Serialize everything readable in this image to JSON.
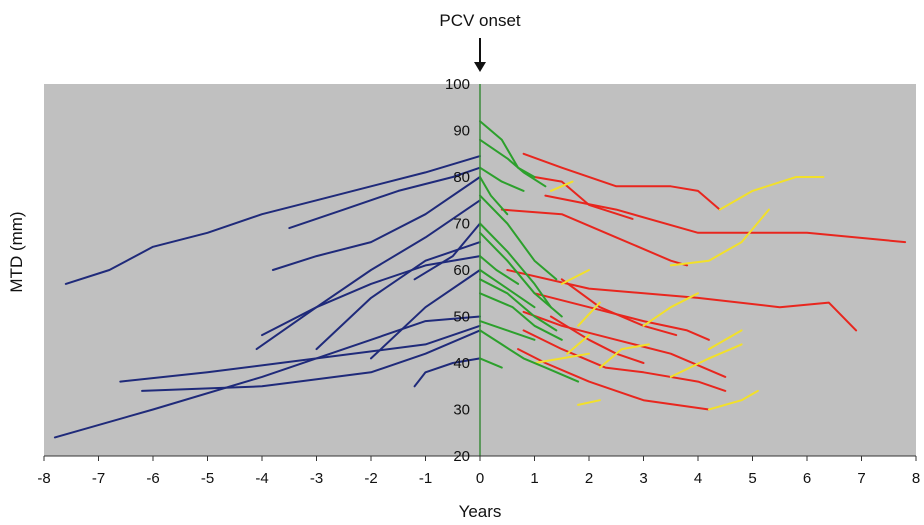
{
  "chart_data": {
    "type": "line",
    "title": "",
    "annotation": "PCV onset",
    "xlabel": "Years",
    "ylabel": "MTD (mm)",
    "xlim": [
      -8,
      8
    ],
    "ylim": [
      20,
      100
    ],
    "xticks": [
      "-8",
      "-7",
      "-6",
      "-5",
      "-4",
      "-3",
      "-2",
      "-1",
      "0",
      "1",
      "2",
      "3",
      "4",
      "5",
      "6",
      "7",
      "8"
    ],
    "yticks": [
      "20",
      "30",
      "40",
      "50",
      "60",
      "70",
      "80",
      "90",
      "100"
    ],
    "grid": false,
    "background_color": "#c0c0c0",
    "vertical_line_x": 0,
    "colors": {
      "pre_pcv": "#1f2a7a",
      "early_post": "#2ca02c",
      "late_post": "#e8261e",
      "recurrence": "#f2e02a",
      "onset_line": "#3a8a3a"
    },
    "series": [
      {
        "group": "pre_pcv",
        "points": [
          [
            -7.6,
            57
          ],
          [
            -6.8,
            60
          ],
          [
            -6.0,
            65
          ],
          [
            -5.0,
            68
          ],
          [
            -4.0,
            72
          ],
          [
            -3.0,
            75
          ],
          [
            -2.0,
            78
          ],
          [
            -1.0,
            81
          ],
          [
            0,
            84.5
          ]
        ]
      },
      {
        "group": "pre_pcv",
        "points": [
          [
            -3.5,
            69
          ],
          [
            -2.5,
            73
          ],
          [
            -1.5,
            77
          ],
          [
            -0.5,
            80
          ],
          [
            0,
            82
          ]
        ]
      },
      {
        "group": "pre_pcv",
        "points": [
          [
            -3.8,
            60
          ],
          [
            -3.0,
            63
          ],
          [
            -2.0,
            66
          ],
          [
            -1.0,
            72
          ],
          [
            0,
            80
          ]
        ]
      },
      {
        "group": "pre_pcv",
        "points": [
          [
            -4.1,
            43
          ],
          [
            -3.0,
            52
          ],
          [
            -2.0,
            60
          ],
          [
            -1.0,
            67
          ],
          [
            0,
            75
          ]
        ]
      },
      {
        "group": "pre_pcv",
        "points": [
          [
            -4.0,
            46
          ],
          [
            -3.0,
            52
          ],
          [
            -2.0,
            57
          ],
          [
            -1.0,
            61
          ],
          [
            0,
            63
          ]
        ]
      },
      {
        "group": "pre_pcv",
        "points": [
          [
            -3.0,
            43
          ],
          [
            -2.0,
            54
          ],
          [
            -1.0,
            62
          ],
          [
            0,
            66
          ]
        ]
      },
      {
        "group": "pre_pcv",
        "points": [
          [
            -2.0,
            41
          ],
          [
            -1.0,
            52
          ],
          [
            0,
            60
          ]
        ]
      },
      {
        "group": "pre_pcv",
        "points": [
          [
            -1.2,
            58
          ],
          [
            -0.5,
            63
          ],
          [
            0,
            70
          ]
        ]
      },
      {
        "group": "pre_pcv",
        "points": [
          [
            -6.6,
            36
          ],
          [
            -5.0,
            38
          ],
          [
            -3.0,
            41
          ],
          [
            -1.0,
            44
          ],
          [
            0,
            48
          ]
        ]
      },
      {
        "group": "pre_pcv",
        "points": [
          [
            -6.2,
            34
          ],
          [
            -4.0,
            35
          ],
          [
            -2.0,
            38
          ],
          [
            -1.0,
            42
          ],
          [
            0,
            47
          ]
        ]
      },
      {
        "group": "pre_pcv",
        "points": [
          [
            -7.8,
            24
          ],
          [
            -6.0,
            30
          ],
          [
            -4.0,
            37
          ],
          [
            -2.0,
            45
          ],
          [
            -1.0,
            49
          ],
          [
            0,
            50
          ]
        ]
      },
      {
        "group": "pre_pcv",
        "points": [
          [
            -1.2,
            35
          ],
          [
            -1.0,
            38
          ],
          [
            -0.5,
            40
          ],
          [
            0,
            41
          ]
        ]
      },
      {
        "group": "early_post",
        "points": [
          [
            0,
            92
          ],
          [
            0.4,
            88
          ],
          [
            0.7,
            82
          ],
          [
            1.0,
            80
          ]
        ]
      },
      {
        "group": "early_post",
        "points": [
          [
            0,
            88
          ],
          [
            0.5,
            84
          ],
          [
            0.8,
            81
          ],
          [
            1.2,
            78
          ]
        ]
      },
      {
        "group": "early_post",
        "points": [
          [
            0,
            82
          ],
          [
            0.4,
            79
          ],
          [
            0.8,
            77
          ]
        ]
      },
      {
        "group": "early_post",
        "points": [
          [
            0,
            80
          ],
          [
            0.2,
            76
          ],
          [
            0.5,
            72
          ]
        ]
      },
      {
        "group": "early_post",
        "points": [
          [
            0,
            76
          ],
          [
            0.5,
            70
          ],
          [
            1.0,
            62
          ],
          [
            1.4,
            58
          ]
        ]
      },
      {
        "group": "early_post",
        "points": [
          [
            0,
            70
          ],
          [
            0.5,
            64
          ],
          [
            1.0,
            57
          ],
          [
            1.3,
            52
          ]
        ]
      },
      {
        "group": "early_post",
        "points": [
          [
            0,
            68
          ],
          [
            0.5,
            62
          ],
          [
            1.0,
            55
          ],
          [
            1.5,
            50
          ]
        ]
      },
      {
        "group": "early_post",
        "points": [
          [
            0,
            63
          ],
          [
            0.3,
            60
          ],
          [
            0.7,
            57
          ]
        ]
      },
      {
        "group": "early_post",
        "points": [
          [
            0,
            60
          ],
          [
            0.5,
            56
          ],
          [
            1.0,
            52
          ]
        ]
      },
      {
        "group": "early_post",
        "points": [
          [
            0,
            58
          ],
          [
            0.5,
            55
          ],
          [
            1.0,
            50
          ],
          [
            1.4,
            47
          ]
        ]
      },
      {
        "group": "early_post",
        "points": [
          [
            0,
            55
          ],
          [
            0.6,
            52
          ],
          [
            1.0,
            48
          ],
          [
            1.5,
            45
          ]
        ]
      },
      {
        "group": "early_post",
        "points": [
          [
            0,
            49
          ],
          [
            0.5,
            47
          ],
          [
            1.0,
            45
          ]
        ]
      },
      {
        "group": "early_post",
        "points": [
          [
            0,
            47
          ],
          [
            0.4,
            44
          ],
          [
            0.8,
            41
          ],
          [
            1.2,
            39
          ],
          [
            1.8,
            36
          ]
        ]
      },
      {
        "group": "early_post",
        "points": [
          [
            0,
            41
          ],
          [
            0.4,
            39
          ]
        ]
      },
      {
        "group": "late_post",
        "points": [
          [
            0.8,
            85
          ],
          [
            1.5,
            82
          ],
          [
            2.5,
            78
          ],
          [
            3.5,
            78
          ],
          [
            4.0,
            77
          ],
          [
            4.4,
            73
          ]
        ]
      },
      {
        "group": "late_post",
        "points": [
          [
            1.0,
            80
          ],
          [
            1.5,
            79
          ],
          [
            2.0,
            74
          ],
          [
            2.8,
            71
          ]
        ]
      },
      {
        "group": "late_post",
        "points": [
          [
            0.4,
            73
          ],
          [
            1.5,
            72
          ],
          [
            2.5,
            67
          ],
          [
            3.5,
            62
          ],
          [
            3.8,
            61
          ]
        ]
      },
      {
        "group": "late_post",
        "points": [
          [
            1.2,
            76
          ],
          [
            2.5,
            73
          ],
          [
            4.0,
            68
          ],
          [
            6.0,
            68
          ],
          [
            7.8,
            66
          ]
        ]
      },
      {
        "group": "late_post",
        "points": [
          [
            0.5,
            60
          ],
          [
            2.0,
            56
          ],
          [
            4.0,
            54
          ],
          [
            5.5,
            52
          ],
          [
            6.4,
            53
          ],
          [
            6.9,
            47
          ]
        ]
      },
      {
        "group": "late_post",
        "points": [
          [
            1.0,
            55
          ],
          [
            2.0,
            52
          ],
          [
            3.0,
            49
          ],
          [
            3.8,
            47
          ],
          [
            4.2,
            45
          ]
        ]
      },
      {
        "group": "late_post",
        "points": [
          [
            0.8,
            51
          ],
          [
            1.5,
            48
          ],
          [
            2.5,
            45
          ],
          [
            3.5,
            42
          ],
          [
            4.5,
            37
          ]
        ]
      },
      {
        "group": "late_post",
        "points": [
          [
            1.3,
            50
          ],
          [
            2.0,
            45
          ],
          [
            2.5,
            42
          ],
          [
            3.0,
            40
          ]
        ]
      },
      {
        "group": "late_post",
        "points": [
          [
            0.8,
            47
          ],
          [
            1.5,
            43
          ],
          [
            2.3,
            39
          ],
          [
            3.0,
            38
          ],
          [
            4.0,
            36
          ],
          [
            4.5,
            34
          ]
        ]
      },
      {
        "group": "late_post",
        "points": [
          [
            0.7,
            43
          ],
          [
            1.2,
            40
          ],
          [
            2.0,
            36
          ],
          [
            3.0,
            32
          ],
          [
            4.2,
            30
          ]
        ]
      },
      {
        "group": "late_post",
        "points": [
          [
            1.5,
            58
          ],
          [
            2.2,
            52
          ],
          [
            3.0,
            48
          ],
          [
            3.6,
            46
          ]
        ]
      },
      {
        "group": "recurrence",
        "points": [
          [
            1.3,
            77
          ],
          [
            1.7,
            79
          ]
        ]
      },
      {
        "group": "recurrence",
        "points": [
          [
            4.4,
            73
          ],
          [
            5.0,
            77
          ],
          [
            5.8,
            80
          ],
          [
            6.3,
            80
          ]
        ]
      },
      {
        "group": "recurrence",
        "points": [
          [
            3.5,
            61
          ],
          [
            4.2,
            62
          ],
          [
            4.8,
            66
          ],
          [
            5.3,
            73
          ]
        ]
      },
      {
        "group": "recurrence",
        "points": [
          [
            1.5,
            57
          ],
          [
            2.0,
            60
          ]
        ]
      },
      {
        "group": "recurrence",
        "points": [
          [
            1.8,
            48
          ],
          [
            2.2,
            53
          ]
        ]
      },
      {
        "group": "recurrence",
        "points": [
          [
            2.2,
            39
          ],
          [
            2.6,
            43
          ],
          [
            3.1,
            44
          ]
        ]
      },
      {
        "group": "recurrence",
        "points": [
          [
            1.6,
            42
          ],
          [
            2.0,
            46
          ]
        ]
      },
      {
        "group": "recurrence",
        "points": [
          [
            3.0,
            48
          ],
          [
            3.5,
            52
          ],
          [
            4.0,
            55
          ]
        ]
      },
      {
        "group": "recurrence",
        "points": [
          [
            3.5,
            37
          ],
          [
            4.2,
            41
          ],
          [
            4.8,
            44
          ]
        ]
      },
      {
        "group": "recurrence",
        "points": [
          [
            4.2,
            43
          ],
          [
            4.8,
            47
          ]
        ]
      },
      {
        "group": "recurrence",
        "points": [
          [
            1.8,
            31
          ],
          [
            2.2,
            32
          ]
        ]
      },
      {
        "group": "recurrence",
        "points": [
          [
            4.2,
            30
          ],
          [
            4.8,
            32
          ],
          [
            5.1,
            34
          ]
        ]
      },
      {
        "group": "recurrence",
        "points": [
          [
            1.0,
            40
          ],
          [
            1.5,
            41
          ],
          [
            2.0,
            42
          ]
        ]
      }
    ]
  }
}
